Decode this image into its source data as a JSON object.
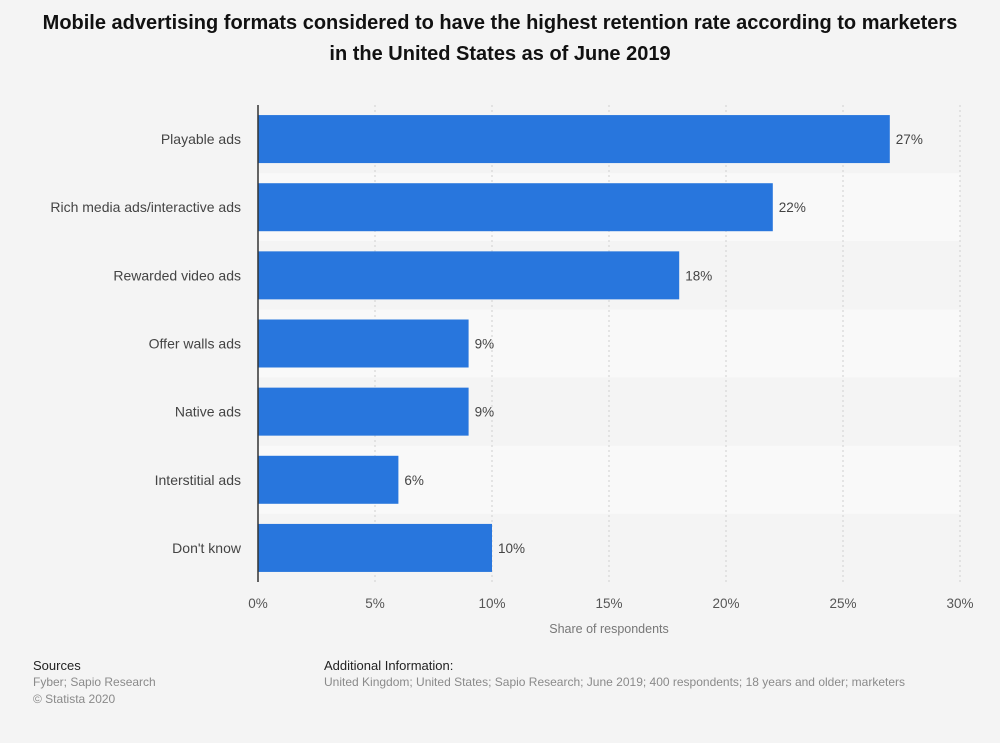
{
  "title": "Mobile advertising formats considered to have the highest retention rate according to marketers in the United States as of June 2019",
  "chart_data": {
    "type": "bar",
    "orientation": "horizontal",
    "categories": [
      "Playable ads",
      "Rich media ads/interactive ads",
      "Rewarded video ads",
      "Offer walls ads",
      "Native ads",
      "Interstitial ads",
      "Don't know"
    ],
    "values": [
      27,
      22,
      18,
      9,
      9,
      6,
      10
    ],
    "value_labels": [
      "27%",
      "22%",
      "18%",
      "9%",
      "9%",
      "6%",
      "10%"
    ],
    "xlabel": "Share of respondents",
    "ylabel": "",
    "xlim": [
      0,
      30
    ],
    "xticks": [
      0,
      5,
      10,
      15,
      20,
      25,
      30
    ],
    "xtick_labels": [
      "0%",
      "5%",
      "10%",
      "15%",
      "20%",
      "25%",
      "30%"
    ],
    "grid": "vertical dashed",
    "legend": "none",
    "bar_color": "#2876dd"
  },
  "footer": {
    "sources_heading": "Sources",
    "sources_lines": [
      "Fyber; Sapio Research",
      "© Statista 2020"
    ],
    "additional_heading": "Additional Information:",
    "additional_text": "United Kingdom; United States; Sapio Research; June 2019; 400 respondents; 18 years and older; marketers"
  }
}
